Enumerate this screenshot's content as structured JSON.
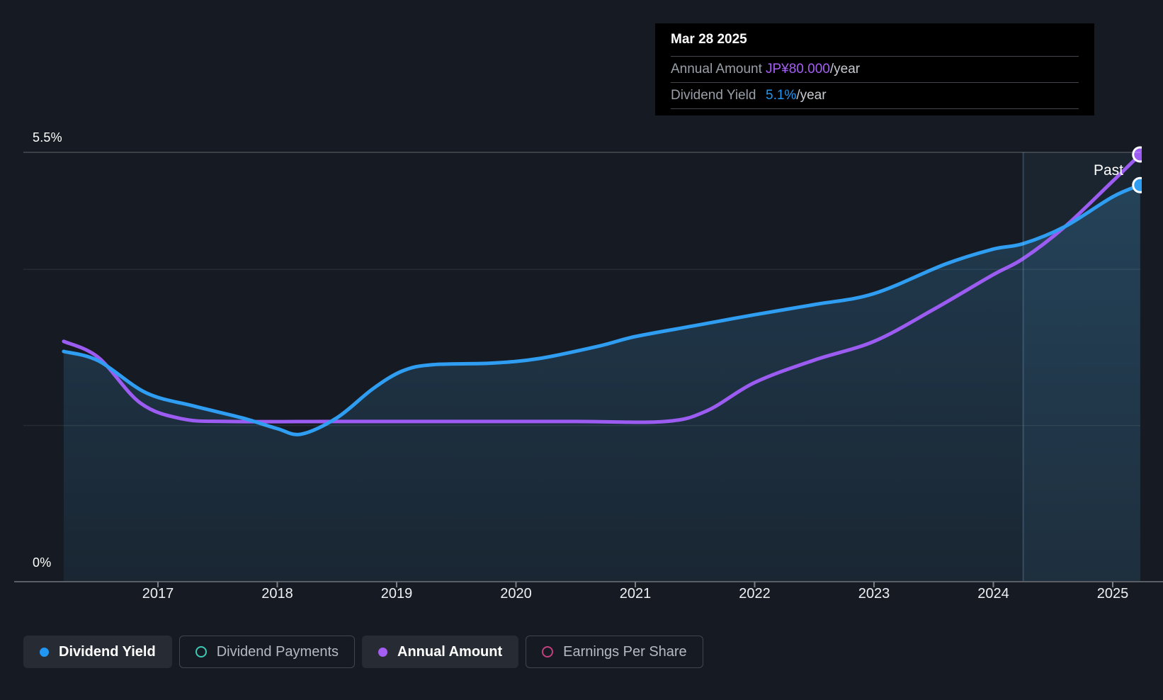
{
  "tooltip": {
    "date": "Mar 28 2025",
    "rows": [
      {
        "label": "Annual Amount",
        "value": "JP¥80.000",
        "suffix": "/year",
        "value_color": "#a55ef2"
      },
      {
        "label": "Dividend Yield",
        "value": "5.1%",
        "suffix": "/year",
        "value_color": "#2196f3"
      }
    ]
  },
  "y_axis": {
    "top_label": "5.5%",
    "bottom_label": "0%"
  },
  "past_label": "Past",
  "legend": [
    {
      "label": "Dividend Yield",
      "marker": "filled-dot",
      "color": "#2196f3",
      "active": true
    },
    {
      "label": "Dividend Payments",
      "marker": "ring",
      "color": "#3ec9b5",
      "active": false
    },
    {
      "label": "Annual Amount",
      "marker": "filled-dot",
      "color": "#a55ef2",
      "active": true
    },
    {
      "label": "Earnings Per Share",
      "marker": "ring",
      "color": "#c2407e",
      "active": false
    }
  ],
  "colors": {
    "background": "#161b23",
    "tooltip_background": "#000000",
    "grid_top": "rgba(255,255,255,0.22)",
    "grid_mid": "rgba(255,255,255,0.07)",
    "axis_line": "#5a5f66",
    "tick": "#7a7f86",
    "past_band": "rgba(96,170,226,0.07)",
    "past_divider": "rgba(150,200,240,0.22)",
    "area_top": "rgba(58,134,184,0.30)",
    "area_bottom": "rgba(58,134,184,0.10)"
  },
  "chart_data": {
    "type": "line",
    "title": "Dividend history chart (hovered at Mar 28 2025)",
    "x_ticks": [
      "2017",
      "2018",
      "2019",
      "2020",
      "2021",
      "2022",
      "2023",
      "2024",
      "2025"
    ],
    "x_range": [
      2016.21,
      2025.23
    ],
    "past_divider_x": 2024.25,
    "grid": "horizontal",
    "legend_position": "bottom",
    "y_left": {
      "label": "Dividend Yield",
      "unit": "%",
      "min": 0,
      "max": 5.5,
      "gridline_values": [
        0,
        2,
        4,
        5.5
      ],
      "labeled_values": [
        "0%",
        "5.5%"
      ]
    },
    "y_right_implied": {
      "label": "Annual Amount",
      "unit": "JP¥/year",
      "min": 0,
      "max_shown": 80
    },
    "series": [
      {
        "name": "Dividend Yield",
        "unit": "%",
        "color": "#2f9ef2",
        "area_fill": true,
        "end_marker": true,
        "end_value_label": "5.1%/year",
        "points": [
          [
            2016.21,
            2.95
          ],
          [
            2016.5,
            2.83
          ],
          [
            2016.9,
            2.42
          ],
          [
            2017.3,
            2.25
          ],
          [
            2017.7,
            2.1
          ],
          [
            2018.0,
            1.96
          ],
          [
            2018.2,
            1.89
          ],
          [
            2018.5,
            2.1
          ],
          [
            2018.8,
            2.47
          ],
          [
            2019.05,
            2.7
          ],
          [
            2019.3,
            2.78
          ],
          [
            2019.8,
            2.8
          ],
          [
            2020.2,
            2.86
          ],
          [
            2020.7,
            3.02
          ],
          [
            2021.0,
            3.14
          ],
          [
            2021.5,
            3.28
          ],
          [
            2022.0,
            3.42
          ],
          [
            2022.5,
            3.55
          ],
          [
            2023.0,
            3.69
          ],
          [
            2023.6,
            4.07
          ],
          [
            2024.0,
            4.26
          ],
          [
            2024.25,
            4.33
          ],
          [
            2024.6,
            4.55
          ],
          [
            2025.0,
            4.93
          ],
          [
            2025.23,
            5.08
          ]
        ]
      },
      {
        "name": "Annual Amount",
        "unit": "JP¥/year",
        "color": "#9c5cf2",
        "area_fill": false,
        "end_marker": true,
        "end_value_label": "JP¥80.000/year",
        "points": [
          [
            2016.21,
            45
          ],
          [
            2016.5,
            42
          ],
          [
            2016.85,
            33.5
          ],
          [
            2017.2,
            30.5
          ],
          [
            2017.6,
            30
          ],
          [
            2018.5,
            30
          ],
          [
            2019.5,
            30
          ],
          [
            2020.5,
            30
          ],
          [
            2021.25,
            30
          ],
          [
            2021.6,
            32
          ],
          [
            2022.0,
            37.3
          ],
          [
            2022.5,
            41.5
          ],
          [
            2023.0,
            45
          ],
          [
            2023.5,
            51
          ],
          [
            2024.0,
            57.5
          ],
          [
            2024.25,
            60.5
          ],
          [
            2024.6,
            66.5
          ],
          [
            2025.0,
            75
          ],
          [
            2025.23,
            80
          ]
        ]
      },
      {
        "name": "Dividend Payments",
        "shown": false
      },
      {
        "name": "Earnings Per Share",
        "shown": false
      }
    ]
  }
}
